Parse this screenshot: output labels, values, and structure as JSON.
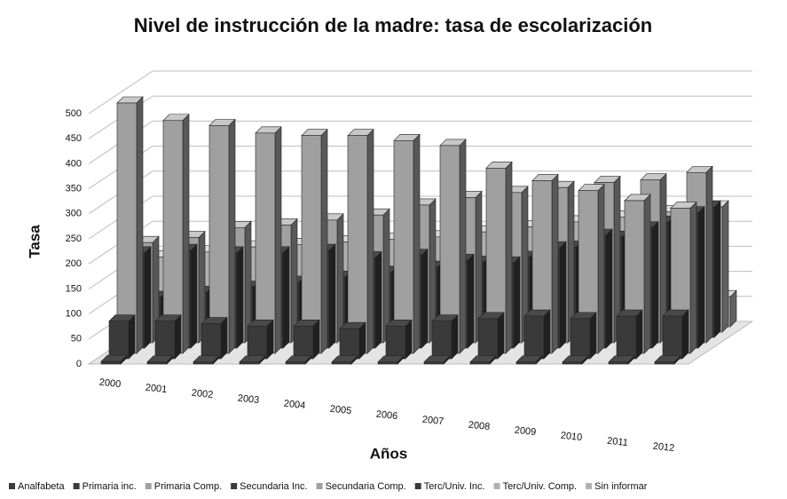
{
  "chart_data": {
    "type": "bar3d",
    "title": "Nivel de instrucción de la madre: tasa de escolarización",
    "y_label": "Tasa",
    "x_label": "Años",
    "categories": [
      "2000",
      "2001",
      "2002",
      "2003",
      "2004",
      "2005",
      "2006",
      "2007",
      "2008",
      "2009",
      "2010",
      "2011",
      "2012"
    ],
    "ylim": [
      0,
      500
    ],
    "yticks": [
      0,
      50,
      100,
      150,
      200,
      250,
      300,
      350,
      400,
      450,
      500
    ],
    "grid": true,
    "legend": "bottom",
    "series": [
      {
        "name": "Analfabeta",
        "color": "#3a3a3a",
        "values": [
          5,
          4,
          4,
          4,
          4,
          4,
          4,
          4,
          4,
          4,
          4,
          4,
          4
        ]
      },
      {
        "name": "Primaria inc.",
        "color": "#3a3a3a",
        "values": [
          75,
          75,
          70,
          65,
          65,
          60,
          65,
          75,
          80,
          85,
          80,
          85,
          85
        ]
      },
      {
        "name": "Primaria Comp.",
        "color": "#a0a0a0",
        "values": [
          500,
          465,
          455,
          440,
          435,
          435,
          425,
          415,
          370,
          345,
          325,
          305,
          290
        ]
      },
      {
        "name": "Secundaria Inc.",
        "color": "#3a3a3a",
        "values": [
          190,
          195,
          190,
          190,
          195,
          180,
          185,
          175,
          170,
          200,
          225,
          240,
          270
        ]
      },
      {
        "name": "Secundaria Comp.",
        "color": "#a0a0a0",
        "values": [
          200,
          210,
          230,
          235,
          245,
          255,
          275,
          290,
          300,
          310,
          320,
          325,
          340
        ]
      },
      {
        "name": "Terc/Univ. Inc.",
        "color": "#3a3a3a",
        "values": [
          80,
          90,
          100,
          110,
          120,
          130,
          140,
          150,
          160,
          180,
          200,
          230,
          260
        ]
      },
      {
        "name": "Terc/Univ. Comp.",
        "color": "#b0b0b0",
        "values": [
          150,
          160,
          170,
          175,
          180,
          185,
          190,
          200,
          210,
          220,
          230,
          240,
          250
        ]
      },
      {
        "name": "Sin informar",
        "color": "#b0b0b0",
        "values": [
          10,
          10,
          10,
          10,
          10,
          10,
          10,
          10,
          10,
          10,
          10,
          30,
          60
        ]
      }
    ]
  }
}
